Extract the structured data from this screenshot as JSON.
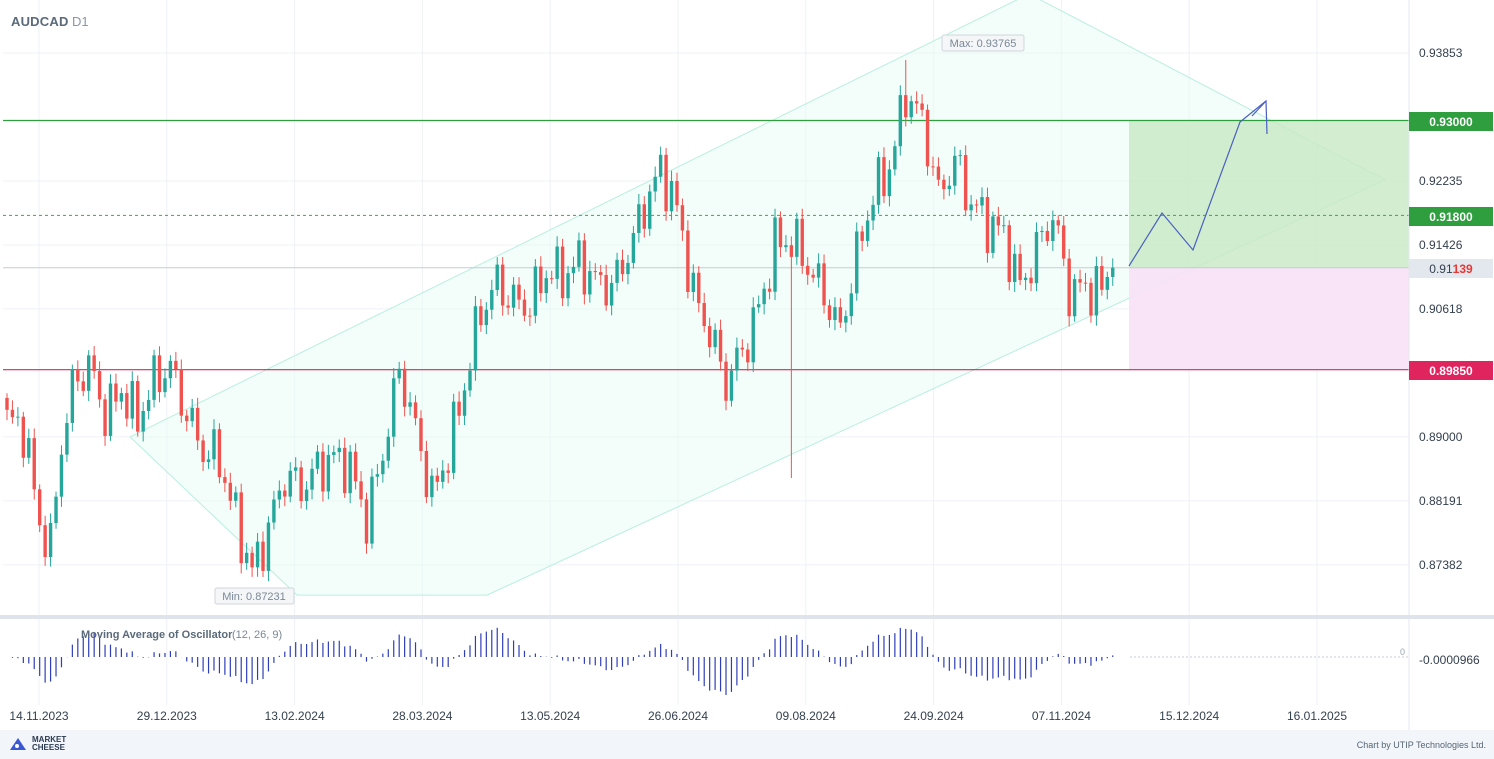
{
  "header": {
    "symbol": "AUDCAD",
    "timeframe": "D1"
  },
  "oscillator": {
    "title": "Moving Average of Oscillator",
    "params": "(12, 26, 9)",
    "value_label": "-0.0000966",
    "zero_label": "0"
  },
  "footer": {
    "brand_line1": "MARKET",
    "brand_line2": "CHEESE",
    "credit": "Chart by UTIP Technologies Ltd."
  },
  "colors": {
    "up": "#26a69a",
    "down": "#ef5350",
    "tp_line": "#2e9e3e",
    "sl_line": "#e0245e",
    "channel": "#b9efe0",
    "projection": "#4a5fc1"
  },
  "chart_data": {
    "type": "candlestick",
    "symbol": "AUDCAD",
    "timeframe": "D1",
    "y_ticks": [
      0.93853,
      0.92235,
      0.91426,
      0.90618,
      0.89,
      0.88191,
      0.87382
    ],
    "ylim": [
      0.871,
      0.946
    ],
    "x_tick_labels": [
      "14.11.2023",
      "29.12.2023",
      "13.02.2024",
      "28.03.2024",
      "13.05.2024",
      "26.06.2024",
      "09.08.2024",
      "24.09.2024",
      "07.11.2024",
      "15.12.2024",
      "16.01.2025"
    ],
    "price_labels": {
      "take_profit": "0.93000",
      "entry": "0.91800",
      "current_prefix": "0.91",
      "current_suffix": "139",
      "stop_loss": "0.89850"
    },
    "levels": {
      "take_profit": 0.93,
      "entry": 0.918,
      "current": 0.91139,
      "stop_loss": 0.8985
    },
    "max_label": "Max: 0.93765",
    "min_label": "Min: 0.87231",
    "max": 0.93765,
    "min": 0.87231,
    "price_path": [
      [
        0,
        0.892
      ],
      [
        3,
        0.89
      ],
      [
        6,
        0.879
      ],
      [
        8,
        0.877
      ],
      [
        10,
        0.89
      ],
      [
        12,
        0.896
      ],
      [
        15,
        0.898
      ],
      [
        18,
        0.893
      ],
      [
        21,
        0.897
      ],
      [
        24,
        0.892
      ],
      [
        27,
        0.896
      ],
      [
        30,
        0.899
      ],
      [
        33,
        0.894
      ],
      [
        36,
        0.888
      ],
      [
        39,
        0.886
      ],
      [
        42,
        0.88
      ],
      [
        45,
        0.874
      ],
      [
        48,
        0.878
      ],
      [
        51,
        0.884
      ],
      [
        54,
        0.884
      ],
      [
        57,
        0.887
      ],
      [
        60,
        0.887
      ],
      [
        63,
        0.885
      ],
      [
        66,
        0.88
      ],
      [
        69,
        0.889
      ],
      [
        72,
        0.898
      ],
      [
        75,
        0.89
      ],
      [
        78,
        0.883
      ],
      [
        81,
        0.889
      ],
      [
        84,
        0.896
      ],
      [
        87,
        0.905
      ],
      [
        90,
        0.91
      ],
      [
        93,
        0.908
      ],
      [
        96,
        0.906
      ],
      [
        99,
        0.91
      ],
      [
        102,
        0.911
      ],
      [
        105,
        0.913
      ],
      [
        108,
        0.909
      ],
      [
        111,
        0.908
      ],
      [
        114,
        0.914
      ],
      [
        117,
        0.92
      ],
      [
        120,
        0.923
      ],
      [
        123,
        0.918
      ],
      [
        126,
        0.909
      ],
      [
        129,
        0.904
      ],
      [
        132,
        0.896
      ],
      [
        135,
        0.9
      ],
      [
        138,
        0.907
      ],
      [
        141,
        0.915
      ],
      [
        144,
        0.914
      ],
      [
        147,
        0.911
      ],
      [
        150,
        0.909
      ],
      [
        153,
        0.904
      ],
      [
        156,
        0.912
      ],
      [
        159,
        0.92
      ],
      [
        162,
        0.925
      ],
      [
        165,
        0.934
      ],
      [
        168,
        0.929
      ],
      [
        171,
        0.92
      ],
      [
        174,
        0.926
      ],
      [
        177,
        0.92
      ],
      [
        180,
        0.916
      ],
      [
        183,
        0.915
      ],
      [
        186,
        0.91
      ],
      [
        189,
        0.914
      ],
      [
        192,
        0.917
      ],
      [
        195,
        0.908
      ],
      [
        198,
        0.91
      ],
      [
        201,
        0.909
      ],
      [
        203,
        0.9114
      ]
    ],
    "oscillator_ticks": [
      0
    ],
    "oscillator_value": -9.66e-05
  }
}
